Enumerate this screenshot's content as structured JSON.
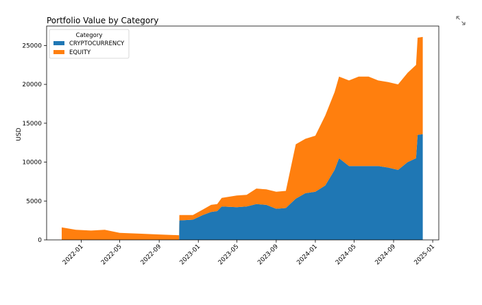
{
  "chart_data": {
    "type": "area",
    "stacked": true,
    "title": "Portfolio Value by Category",
    "xlabel": "",
    "ylabel": "USD",
    "xlim": [
      "2021-09-15",
      "2025-01-20"
    ],
    "ylim": [
      0,
      27500
    ],
    "x_ticks": [
      "2022-01",
      "2022-05",
      "2022-09",
      "2023-01",
      "2023-05",
      "2023-09",
      "2024-01",
      "2024-05",
      "2024-09",
      "2025-01"
    ],
    "y_ticks": [
      0,
      5000,
      10000,
      15000,
      20000,
      25000
    ],
    "grid": false,
    "legend": {
      "title": "Category",
      "placement": "top-left"
    },
    "series": [
      {
        "name": "CRYPTOCURRENCY",
        "color": "#1f77b4",
        "x": [
          "2021-11-01",
          "2022-11-02",
          "2022-11-03",
          "2022-12-15",
          "2023-01-15",
          "2023-02-10",
          "2023-03-01",
          "2023-03-15",
          "2023-05-01",
          "2023-06-01",
          "2023-07-01",
          "2023-08-01",
          "2023-09-01",
          "2023-10-01",
          "2023-11-01",
          "2023-12-01",
          "2024-01-01",
          "2024-02-01",
          "2024-03-01",
          "2024-03-15",
          "2024-04-15",
          "2024-05-15",
          "2024-06-15",
          "2024-07-15",
          "2024-08-15",
          "2024-09-15",
          "2024-10-15",
          "2024-11-10",
          "2024-11-15",
          "2024-12-01"
        ],
        "values": [
          0,
          0,
          2500,
          2600,
          3200,
          3600,
          3700,
          4300,
          4200,
          4300,
          4600,
          4500,
          4000,
          4100,
          5300,
          6000,
          6200,
          7000,
          9000,
          10500,
          9500,
          9500,
          9500,
          9500,
          9300,
          9000,
          10000,
          10500,
          13500,
          13600
        ]
      },
      {
        "name": "EQUITY",
        "color": "#ff7f0e",
        "x": [
          "2021-11-01",
          "2021-12-15",
          "2022-02-01",
          "2022-03-15",
          "2022-05-01",
          "2022-07-01",
          "2022-09-01",
          "2022-11-02",
          "2022-11-03",
          "2022-12-15",
          "2023-01-15",
          "2023-02-10",
          "2023-03-01",
          "2023-03-15",
          "2023-05-01",
          "2023-06-01",
          "2023-07-01",
          "2023-08-01",
          "2023-09-01",
          "2023-10-01",
          "2023-11-01",
          "2023-12-01",
          "2024-01-01",
          "2024-02-01",
          "2024-03-01",
          "2024-03-15",
          "2024-04-15",
          "2024-05-15",
          "2024-06-15",
          "2024-07-15",
          "2024-08-15",
          "2024-09-15",
          "2024-10-15",
          "2024-11-10",
          "2024-11-15",
          "2024-12-01"
        ],
        "values": [
          1600,
          1300,
          1200,
          1300,
          900,
          800,
          700,
          600,
          700,
          600,
          700,
          900,
          900,
          1100,
          1500,
          1500,
          2000,
          2000,
          2200,
          2200,
          7000,
          7000,
          7200,
          9000,
          10000,
          10500,
          11000,
          11500,
          11500,
          11000,
          11000,
          11000,
          11500,
          12000,
          12500,
          12500
        ]
      }
    ]
  },
  "ui": {
    "expand_icon": "expand-arrows-icon"
  }
}
